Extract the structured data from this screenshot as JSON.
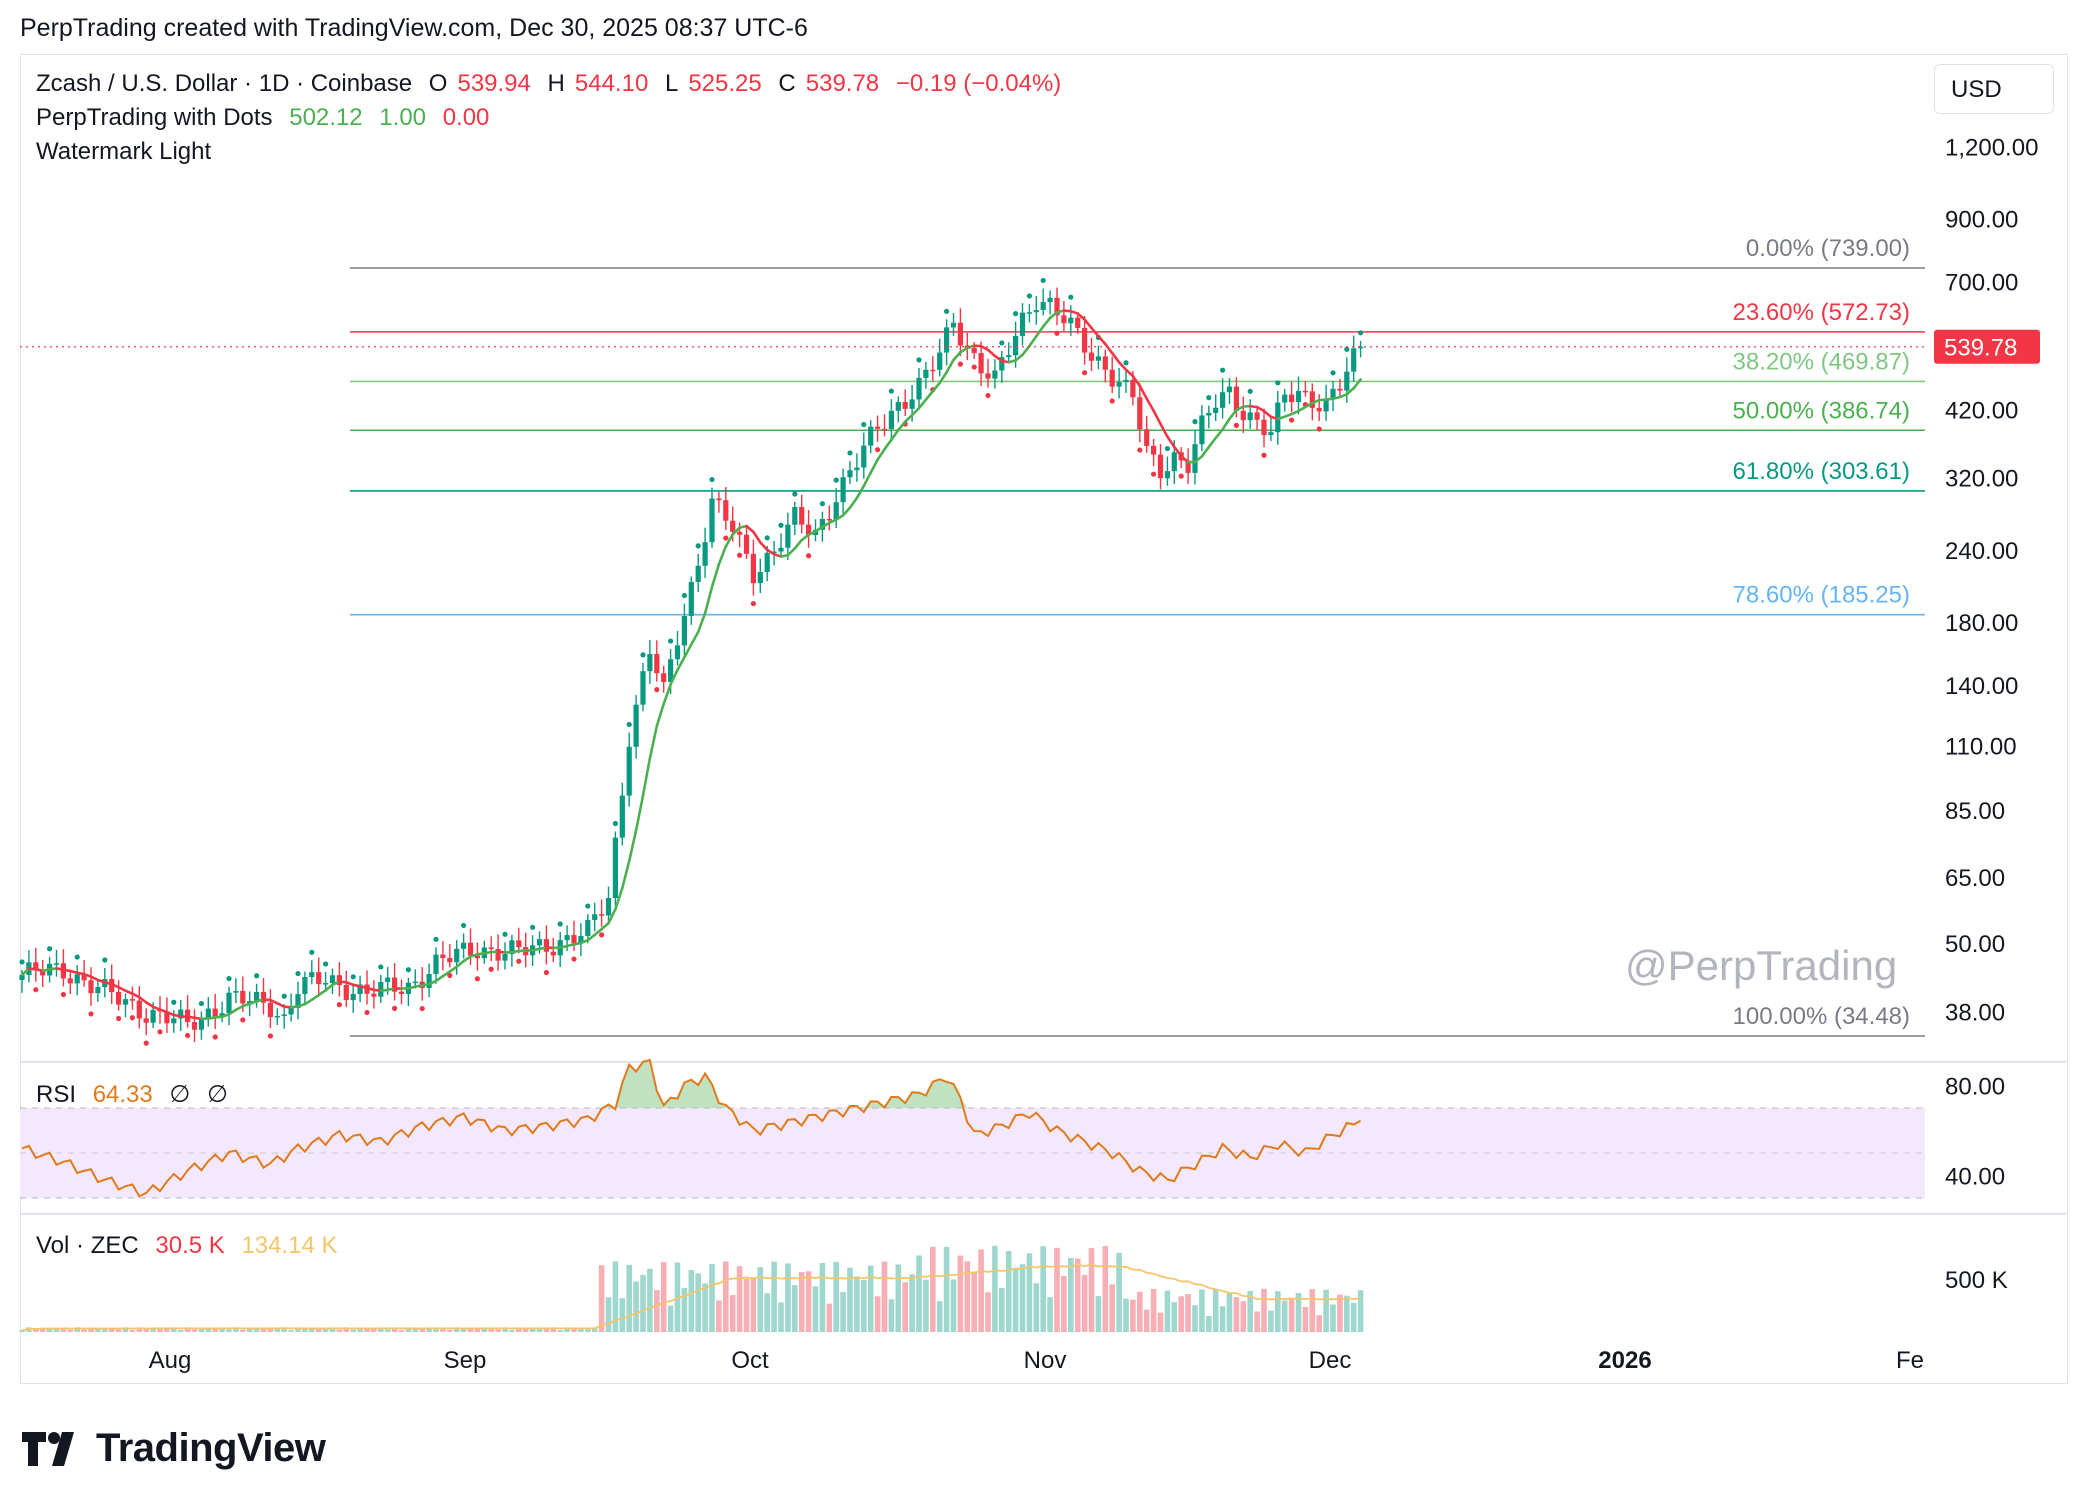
{
  "caption": "PerpTrading created with TradingView.com, Dec 30, 2025 08:37 UTC-6",
  "legend": {
    "symbol": "Zcash / U.S. Dollar · 1D · Coinbase",
    "o_label": "O",
    "o_value": "539.94",
    "h_label": "H",
    "h_value": "544.10",
    "l_label": "L",
    "l_value": "525.25",
    "c_label": "C",
    "c_value": "539.78",
    "change": "−0.19 (−0.04%)",
    "indicator_name": "PerpTrading with Dots",
    "indicator_v1": "502.12",
    "indicator_v2": "1.00",
    "indicator_v3": "0.00",
    "watermark_name": "Watermark Light"
  },
  "currency_button": "USD",
  "watermark_text": "@PerpTrading",
  "last_price_tag": "539.78",
  "brand": "TradingView",
  "colors": {
    "up": "#089981",
    "down": "#f23645",
    "ma_green": "#4caf50",
    "ma_red": "#f23645",
    "rsi_line": "#e07b1b",
    "rsi_band": "#f3e8fd",
    "vol_up": "#9ed7ce",
    "vol_down": "#f7aeb4",
    "vol_ma": "#f5c56b"
  },
  "chart_data": [
    {
      "type": "candlestick",
      "pane": "price",
      "yscale": "log",
      "y_ticks": [
        "1,200.00",
        "900.00",
        "700.00",
        "420.00",
        "320.00",
        "240.00",
        "180.00",
        "140.00",
        "110.00",
        "85.00",
        "65.00",
        "50.00",
        "38.00"
      ],
      "x_ticks": [
        "Aug",
        "Sep",
        "Oct",
        "Nov",
        "Dec",
        "2026",
        "Fe"
      ],
      "fib_levels": [
        {
          "label": "0.00% (739.00)",
          "value": 739.0,
          "color": "#787b86"
        },
        {
          "label": "23.60% (572.73)",
          "value": 572.73,
          "color": "#f23645"
        },
        {
          "label": "38.20% (469.87)",
          "value": 469.87,
          "color": "#81c784"
        },
        {
          "label": "50.00% (386.74)",
          "value": 386.74,
          "color": "#4caf50"
        },
        {
          "label": "61.80% (303.61)",
          "value": 303.61,
          "color": "#089981"
        },
        {
          "label": "78.60% (185.25)",
          "value": 185.25,
          "color": "#64b5f6"
        },
        {
          "label": "100.00% (34.48)",
          "value": 34.48,
          "color": "#787b86"
        }
      ],
      "close_anchor_series": [
        {
          "d": 0,
          "c": 44
        },
        {
          "d": 6,
          "c": 45
        },
        {
          "d": 12,
          "c": 41
        },
        {
          "d": 18,
          "c": 38
        },
        {
          "d": 24,
          "c": 36
        },
        {
          "d": 30,
          "c": 40
        },
        {
          "d": 36,
          "c": 39
        },
        {
          "d": 38,
          "c": 37
        },
        {
          "d": 40,
          "c": 42
        },
        {
          "d": 44,
          "c": 43
        },
        {
          "d": 50,
          "c": 41
        },
        {
          "d": 56,
          "c": 42
        },
        {
          "d": 60,
          "c": 46
        },
        {
          "d": 66,
          "c": 49
        },
        {
          "d": 72,
          "c": 48
        },
        {
          "d": 77,
          "c": 50
        },
        {
          "d": 82,
          "c": 52
        },
        {
          "d": 85,
          "c": 60
        },
        {
          "d": 88,
          "c": 115
        },
        {
          "d": 91,
          "c": 160
        },
        {
          "d": 93,
          "c": 135
        },
        {
          "d": 95,
          "c": 170
        },
        {
          "d": 98,
          "c": 230
        },
        {
          "d": 100,
          "c": 290
        },
        {
          "d": 103,
          "c": 260
        },
        {
          "d": 106,
          "c": 220
        },
        {
          "d": 109,
          "c": 240
        },
        {
          "d": 112,
          "c": 270
        },
        {
          "d": 115,
          "c": 255
        },
        {
          "d": 118,
          "c": 300
        },
        {
          "d": 121,
          "c": 340
        },
        {
          "d": 124,
          "c": 390
        },
        {
          "d": 127,
          "c": 430
        },
        {
          "d": 130,
          "c": 460
        },
        {
          "d": 133,
          "c": 520
        },
        {
          "d": 135,
          "c": 600
        },
        {
          "d": 137,
          "c": 540
        },
        {
          "d": 139,
          "c": 500
        },
        {
          "d": 141,
          "c": 470
        },
        {
          "d": 143,
          "c": 530
        },
        {
          "d": 145,
          "c": 600
        },
        {
          "d": 147,
          "c": 660
        },
        {
          "d": 149,
          "c": 640
        },
        {
          "d": 151,
          "c": 600
        },
        {
          "d": 153,
          "c": 560
        },
        {
          "d": 155,
          "c": 520
        },
        {
          "d": 157,
          "c": 500
        },
        {
          "d": 159,
          "c": 470
        },
        {
          "d": 161,
          "c": 440
        },
        {
          "d": 163,
          "c": 350
        },
        {
          "d": 165,
          "c": 330
        },
        {
          "d": 167,
          "c": 350
        },
        {
          "d": 169,
          "c": 340
        },
        {
          "d": 171,
          "c": 390
        },
        {
          "d": 173,
          "c": 430
        },
        {
          "d": 175,
          "c": 450
        },
        {
          "d": 177,
          "c": 420
        },
        {
          "d": 179,
          "c": 400
        },
        {
          "d": 181,
          "c": 380
        },
        {
          "d": 183,
          "c": 440
        },
        {
          "d": 185,
          "c": 450
        },
        {
          "d": 187,
          "c": 440
        },
        {
          "d": 189,
          "c": 430
        },
        {
          "d": 191,
          "c": 460
        },
        {
          "d": 193,
          "c": 510
        },
        {
          "d": 194,
          "c": 539.78
        }
      ]
    },
    {
      "type": "line",
      "pane": "rsi",
      "name": "RSI",
      "current": "64.33",
      "extra_labels": [
        "∅",
        "∅"
      ],
      "y_ticks": [
        "80.00",
        "40.00"
      ],
      "band": [
        30,
        70
      ],
      "anchor_series": [
        {
          "d": 0,
          "v": 52
        },
        {
          "d": 6,
          "v": 46
        },
        {
          "d": 12,
          "v": 38
        },
        {
          "d": 18,
          "v": 32
        },
        {
          "d": 24,
          "v": 42
        },
        {
          "d": 30,
          "v": 50
        },
        {
          "d": 36,
          "v": 45
        },
        {
          "d": 40,
          "v": 52
        },
        {
          "d": 46,
          "v": 58
        },
        {
          "d": 52,
          "v": 55
        },
        {
          "d": 58,
          "v": 62
        },
        {
          "d": 64,
          "v": 66
        },
        {
          "d": 70,
          "v": 60
        },
        {
          "d": 76,
          "v": 62
        },
        {
          "d": 82,
          "v": 65
        },
        {
          "d": 86,
          "v": 72
        },
        {
          "d": 88,
          "v": 88
        },
        {
          "d": 91,
          "v": 90
        },
        {
          "d": 93,
          "v": 70
        },
        {
          "d": 96,
          "v": 80
        },
        {
          "d": 99,
          "v": 84
        },
        {
          "d": 102,
          "v": 70
        },
        {
          "d": 106,
          "v": 60
        },
        {
          "d": 112,
          "v": 64
        },
        {
          "d": 118,
          "v": 68
        },
        {
          "d": 124,
          "v": 72
        },
        {
          "d": 130,
          "v": 76
        },
        {
          "d": 134,
          "v": 84
        },
        {
          "d": 136,
          "v": 74
        },
        {
          "d": 138,
          "v": 58
        },
        {
          "d": 142,
          "v": 62
        },
        {
          "d": 146,
          "v": 68
        },
        {
          "d": 150,
          "v": 60
        },
        {
          "d": 154,
          "v": 55
        },
        {
          "d": 158,
          "v": 50
        },
        {
          "d": 162,
          "v": 42
        },
        {
          "d": 166,
          "v": 38
        },
        {
          "d": 170,
          "v": 45
        },
        {
          "d": 174,
          "v": 52
        },
        {
          "d": 178,
          "v": 48
        },
        {
          "d": 182,
          "v": 54
        },
        {
          "d": 186,
          "v": 50
        },
        {
          "d": 190,
          "v": 58
        },
        {
          "d": 194,
          "v": 64.33
        }
      ]
    },
    {
      "type": "bar",
      "pane": "volume",
      "name": "Vol · ZEC",
      "current": "30.5 K",
      "ma_value": "134.14 K",
      "y_ticks": [
        "500 K"
      ]
    }
  ]
}
